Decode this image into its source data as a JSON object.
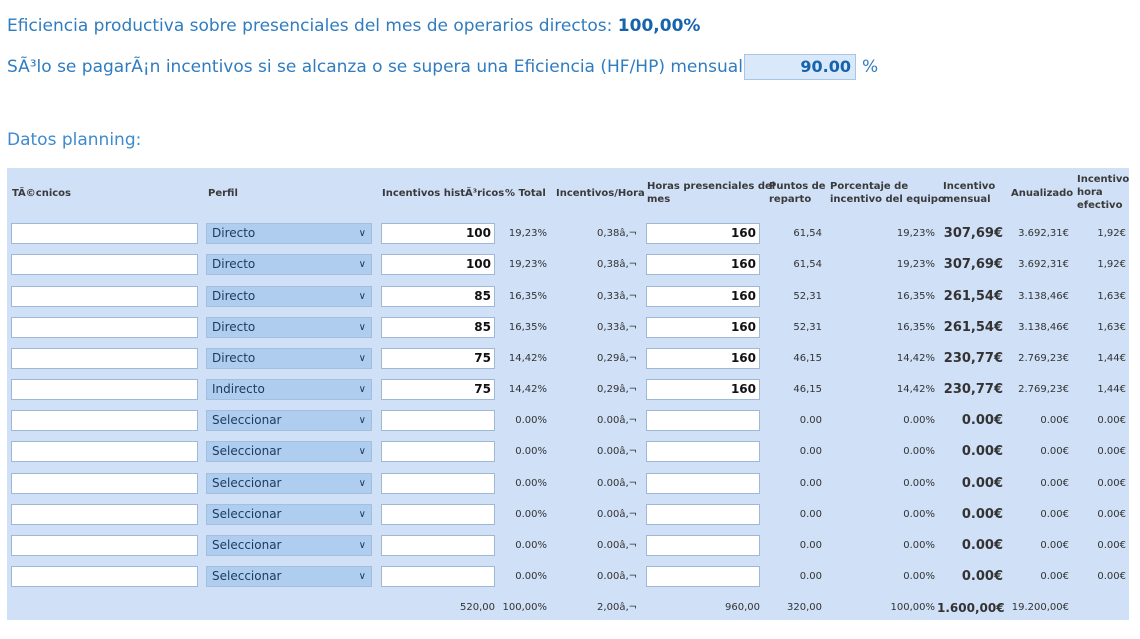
{
  "efficiency_label": "Eficiencia productiva sobre presenciales del mes de operarios directos:",
  "efficiency_value": "100,00%",
  "threshold_label": "SÃ³lo se pagarÃ¡n incentivos si se alcanza o se supera una Eficiencia (HF/HP) mensual del:",
  "threshold_value": "90.00",
  "threshold_unit": "%",
  "section_title": "Datos planning:",
  "columns": {
    "tecnicos": "TÃ©cnicos",
    "perfil": "Perfil",
    "incentivos_hist": "Incentivos histÃ³ricos",
    "pct_total": "% Total",
    "incentivos_hora": "Incentivos/Hora",
    "horas_pres_1": "Horas presenciales del",
    "horas_pres_2": "mes",
    "puntos_1": "Puntos de",
    "puntos_2": "reparto",
    "porc_1": "Porcentaje de",
    "porc_2": "incentivo del equipo",
    "inc_mensual_1": "Incentivo",
    "inc_mensual_2": "mensual",
    "anualizado": "Anualizado",
    "inc_hora_1": "Incentivo",
    "inc_hora_2": "hora",
    "inc_hora_3": "efectivo"
  },
  "rows": [
    {
      "perfil": "Directo",
      "hist": "100",
      "pct": "19,23%",
      "ih": "0,38â‚¬",
      "horas": "160",
      "puntos": "61,54",
      "porc": "19,23%",
      "mensual": "307,69€",
      "anual": "3.692,31€",
      "efec": "1,92€"
    },
    {
      "perfil": "Directo",
      "hist": "100",
      "pct": "19,23%",
      "ih": "0,38â‚¬",
      "horas": "160",
      "puntos": "61,54",
      "porc": "19,23%",
      "mensual": "307,69€",
      "anual": "3.692,31€",
      "efec": "1,92€"
    },
    {
      "perfil": "Directo",
      "hist": "85",
      "pct": "16,35%",
      "ih": "0,33â‚¬",
      "horas": "160",
      "puntos": "52,31",
      "porc": "16,35%",
      "mensual": "261,54€",
      "anual": "3.138,46€",
      "efec": "1,63€"
    },
    {
      "perfil": "Directo",
      "hist": "85",
      "pct": "16,35%",
      "ih": "0,33â‚¬",
      "horas": "160",
      "puntos": "52,31",
      "porc": "16,35%",
      "mensual": "261,54€",
      "anual": "3.138,46€",
      "efec": "1,63€"
    },
    {
      "perfil": "Directo",
      "hist": "75",
      "pct": "14,42%",
      "ih": "0,29â‚¬",
      "horas": "160",
      "puntos": "46,15",
      "porc": "14,42%",
      "mensual": "230,77€",
      "anual": "2.769,23€",
      "efec": "1,44€"
    },
    {
      "perfil": "Indirecto",
      "hist": "75",
      "pct": "14,42%",
      "ih": "0,29â‚¬",
      "horas": "160",
      "puntos": "46,15",
      "porc": "14,42%",
      "mensual": "230,77€",
      "anual": "2.769,23€",
      "efec": "1,44€"
    },
    {
      "perfil": "Seleccionar",
      "hist": "",
      "pct": "0.00%",
      "ih": "0.00â‚¬",
      "horas": "",
      "puntos": "0.00",
      "porc": "0.00%",
      "mensual": "0.00€",
      "anual": "0.00€",
      "efec": "0.00€"
    },
    {
      "perfil": "Seleccionar",
      "hist": "",
      "pct": "0.00%",
      "ih": "0.00â‚¬",
      "horas": "",
      "puntos": "0.00",
      "porc": "0.00%",
      "mensual": "0.00€",
      "anual": "0.00€",
      "efec": "0.00€"
    },
    {
      "perfil": "Seleccionar",
      "hist": "",
      "pct": "0.00%",
      "ih": "0.00â‚¬",
      "horas": "",
      "puntos": "0.00",
      "porc": "0.00%",
      "mensual": "0.00€",
      "anual": "0.00€",
      "efec": "0.00€"
    },
    {
      "perfil": "Seleccionar",
      "hist": "",
      "pct": "0.00%",
      "ih": "0.00â‚¬",
      "horas": "",
      "puntos": "0.00",
      "porc": "0.00%",
      "mensual": "0.00€",
      "anual": "0.00€",
      "efec": "0.00€"
    },
    {
      "perfil": "Seleccionar",
      "hist": "",
      "pct": "0.00%",
      "ih": "0.00â‚¬",
      "horas": "",
      "puntos": "0.00",
      "porc": "0.00%",
      "mensual": "0.00€",
      "anual": "0.00€",
      "efec": "0.00€"
    },
    {
      "perfil": "Seleccionar",
      "hist": "",
      "pct": "0.00%",
      "ih": "0.00â‚¬",
      "horas": "",
      "puntos": "0.00",
      "porc": "0.00%",
      "mensual": "0.00€",
      "anual": "0.00€",
      "efec": "0.00€"
    }
  ],
  "totals": {
    "hist": "520,00",
    "pct": "100,00%",
    "ih": "2,00â‚¬",
    "horas": "960,00",
    "puntos": "320,00",
    "porc": "100,00%",
    "mensual": "1.600,00€",
    "anual": "19.200,00€"
  }
}
